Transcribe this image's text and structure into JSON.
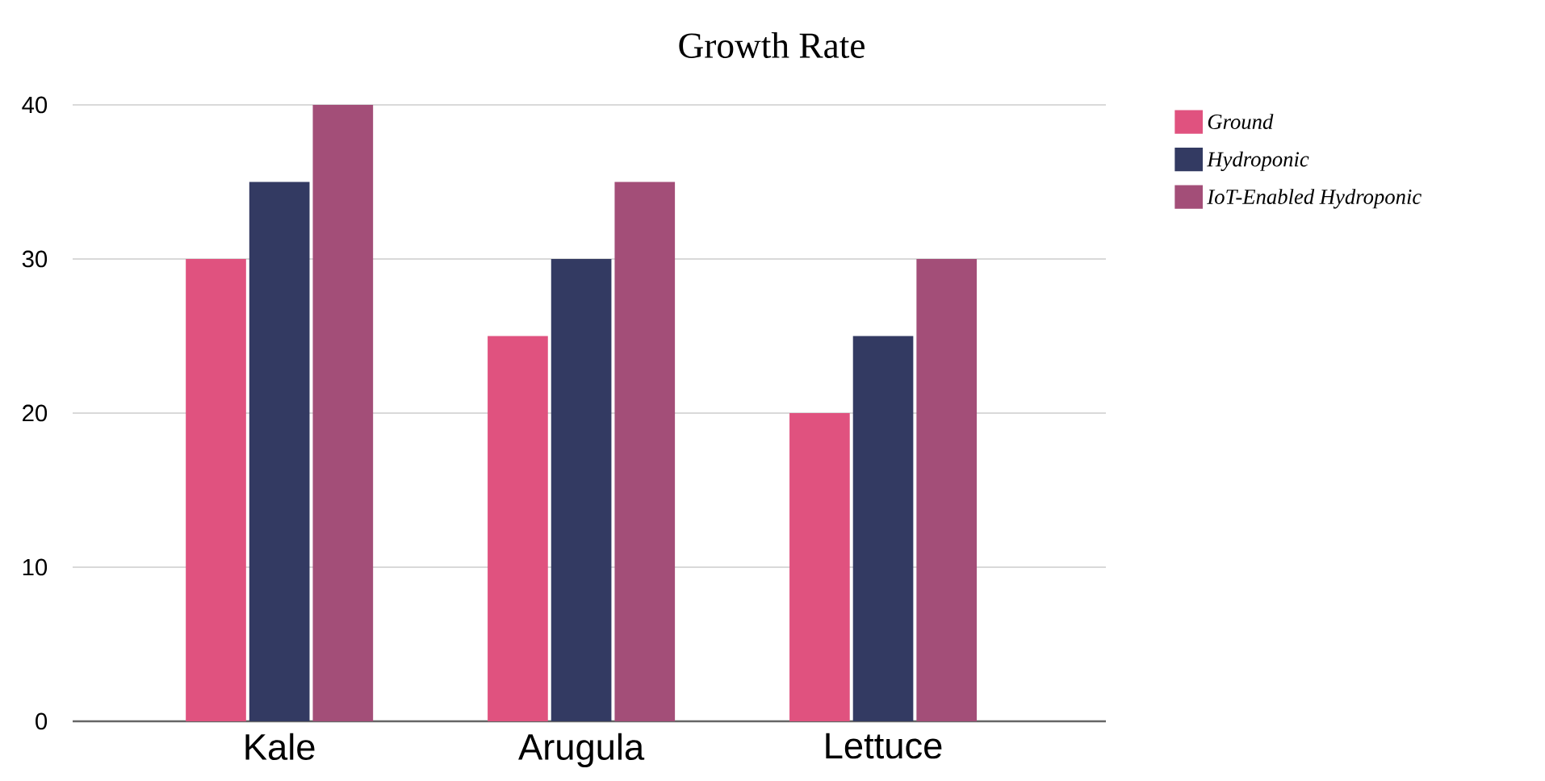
{
  "chart_data": {
    "type": "bar",
    "title": "Growth Rate",
    "categories": [
      "Kale",
      "Arugula",
      "Lettuce"
    ],
    "series": [
      {
        "name": "Ground",
        "color": "#e0527f",
        "values": [
          30,
          25,
          20
        ]
      },
      {
        "name": "Hydroponic",
        "color": "#333a62",
        "values": [
          35,
          30,
          25
        ]
      },
      {
        "name": "IoT-Enabled Hydroponic",
        "color": "#a34e78",
        "values": [
          40,
          35,
          30
        ]
      }
    ],
    "ylim": [
      0,
      40
    ],
    "yticks": [
      0,
      10,
      20,
      30,
      40
    ],
    "grid": "y",
    "legend": "top right"
  }
}
